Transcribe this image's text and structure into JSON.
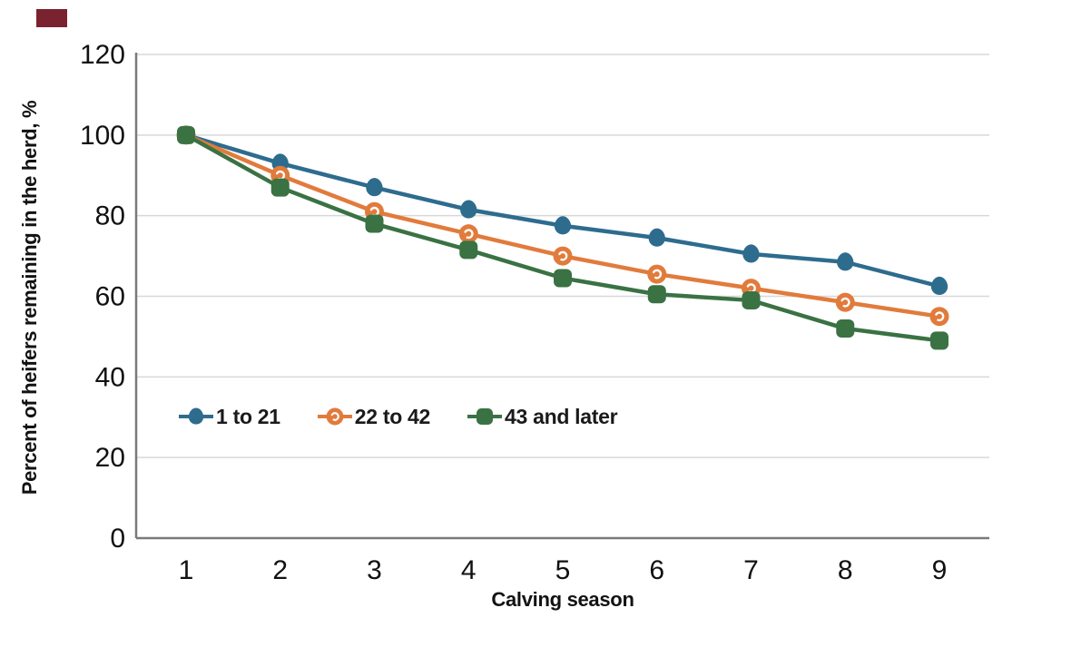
{
  "accent": {
    "color": "#7b2230"
  },
  "chart_data": {
    "type": "line",
    "title": "",
    "xlabel": "Calving season",
    "ylabel": "Percent of heifers remaining in the herd, %",
    "x": [
      1,
      2,
      3,
      4,
      5,
      6,
      7,
      8,
      9
    ],
    "xticks": [
      "1",
      "2",
      "3",
      "4",
      "5",
      "6",
      "7",
      "8",
      "9"
    ],
    "yticks": [
      0,
      20,
      40,
      60,
      80,
      100,
      120
    ],
    "ylim": [
      0,
      120
    ],
    "grid": true,
    "gridline_color": "#d8d8d8",
    "axis_color": "#7a7a7a",
    "tick_label_color": "#111111",
    "legend_position": "inside-left-middle",
    "series": [
      {
        "name": "1 to 21",
        "color": "#2e6c8e",
        "marker": "egg",
        "values": [
          100,
          93,
          87,
          81.5,
          77.5,
          74.5,
          70.5,
          68.5,
          62.5
        ]
      },
      {
        "name": "22 to 42",
        "color": "#e17b3c",
        "marker": "donut",
        "values": [
          100,
          90,
          81,
          75.5,
          70,
          65.5,
          62,
          58.5,
          55
        ]
      },
      {
        "name": "43 and later",
        "color": "#3a7243",
        "marker": "rounded-square",
        "values": [
          100,
          87,
          78,
          71.5,
          64.5,
          60.5,
          59,
          52,
          49
        ]
      }
    ]
  }
}
